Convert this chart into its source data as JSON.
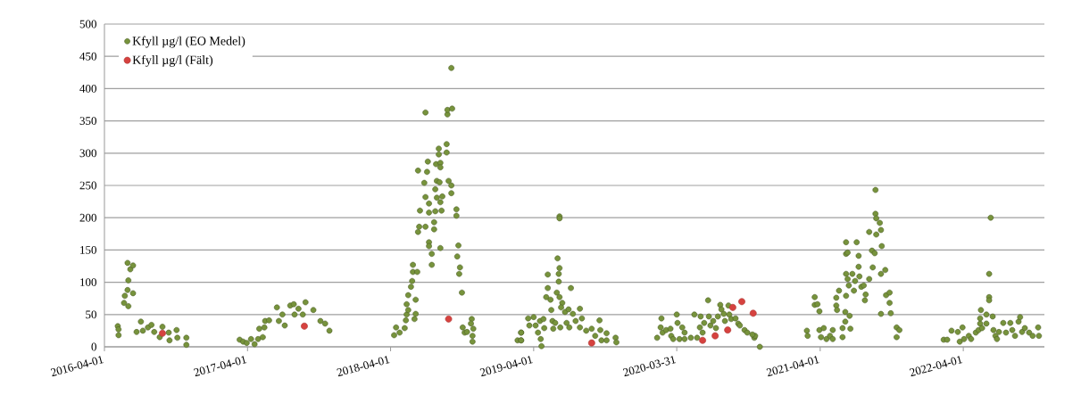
{
  "chart_data": {
    "type": "scatter",
    "xlim": [
      "2016-04-01",
      "2022-10-25"
    ],
    "xticks": [
      "2016-04-01",
      "2017-04-01",
      "2018-04-01",
      "2019-04-01",
      "2020-03-31",
      "2021-04-01",
      "2022-04-01"
    ],
    "ylim": [
      0,
      500
    ],
    "yticks": [
      0,
      50,
      100,
      150,
      200,
      250,
      300,
      350,
      400,
      450,
      500
    ],
    "grid": "y",
    "legend": "top left",
    "marker": "circle",
    "series": [
      {
        "name": "Kfyll µg/l (EO Medel)",
        "color": "#77933c",
        "x": [
          "2016-05-05",
          "2016-05-07",
          "2016-05-07",
          "2016-05-21",
          "2016-06-01",
          "2016-05-23",
          "2016-05-30",
          "2016-06-13",
          "2016-06-01",
          "2016-05-30",
          "2016-06-06",
          "2016-06-13",
          "2016-06-22",
          "2016-07-03",
          "2016-07-08",
          "2016-07-21",
          "2016-07-30",
          "2016-08-06",
          "2016-08-20",
          "2016-08-27",
          "2016-09-12",
          "2016-09-14",
          "2016-10-02",
          "2016-10-04",
          "2016-10-27",
          "2016-10-27",
          "2017-03-12",
          "2017-03-21",
          "2017-03-30",
          "2017-04-10",
          "2017-04-19",
          "2017-04-28",
          "2017-05-01",
          "2017-05-10",
          "2017-05-14",
          "2017-05-16",
          "2017-05-26",
          "2017-06-15",
          "2017-06-20",
          "2017-06-29",
          "2017-07-05",
          "2017-07-19",
          "2017-07-28",
          "2017-07-30",
          "2017-08-09",
          "2017-08-20",
          "2017-08-27",
          "2017-09-16",
          "2017-10-04",
          "2017-10-16",
          "2017-10-27",
          "2018-04-10",
          "2018-04-24",
          "2018-04-15",
          "2018-05-07",
          "2018-05-10",
          "2018-05-12",
          "2018-05-16",
          "2018-05-12",
          "2018-05-16",
          "2018-05-23",
          "2018-05-26",
          "2018-05-28",
          "2018-05-28",
          "2018-06-08",
          "2018-06-04",
          "2018-06-04",
          "2018-06-01",
          "2018-06-10",
          "2018-06-13",
          "2018-06-15",
          "2018-06-10",
          "2018-06-26",
          "2018-06-29",
          "2018-06-29",
          "2018-07-05",
          "2018-07-03",
          "2018-07-08",
          "2018-07-08",
          "2018-07-08",
          "2018-07-08",
          "2018-07-15",
          "2018-07-15",
          "2018-06-29",
          "2018-07-24",
          "2018-07-21",
          "2018-07-21",
          "2018-07-24",
          "2018-07-26",
          "2018-07-28",
          "2018-07-28",
          "2018-08-02",
          "2018-08-02",
          "2018-08-06",
          "2018-08-06",
          "2018-08-04",
          "2018-08-06",
          "2018-08-09",
          "2018-08-06",
          "2018-08-11",
          "2018-08-22",
          "2018-08-22",
          "2018-08-24",
          "2018-08-24",
          "2018-09-05",
          "2018-09-03",
          "2018-08-27",
          "2018-09-03",
          "2018-09-03",
          "2018-09-16",
          "2018-09-16",
          "2018-09-21",
          "2018-09-18",
          "2018-09-25",
          "2018-09-23",
          "2018-09-30",
          "2018-10-02",
          "2018-10-07",
          "2018-10-13",
          "2018-10-25",
          "2018-10-23",
          "2018-10-29",
          "2018-10-27",
          "2018-10-27",
          "2019-02-19",
          "2019-02-28",
          "2019-02-28",
          "2019-02-28",
          "2019-02-28",
          "2019-03-18",
          "2019-03-21",
          "2019-04-01",
          "2019-04-06",
          "2019-04-12",
          "2019-04-19",
          "2019-04-21",
          "2019-04-17",
          "2019-04-26",
          "2019-04-28",
          "2019-05-03",
          "2019-05-07",
          "2019-05-07",
          "2019-05-14",
          "2019-05-16",
          "2019-05-19",
          "2019-05-21",
          "2019-05-26",
          "2019-05-30",
          "2019-06-04",
          "2019-06-04",
          "2019-06-06",
          "2019-06-01",
          "2019-06-06",
          "2019-06-06",
          "2019-06-06",
          "2019-06-13",
          "2019-06-10",
          "2019-06-08",
          "2019-06-20",
          "2019-06-24",
          "2019-06-29",
          "2019-07-01",
          "2019-07-05",
          "2019-07-10",
          "2019-07-17",
          "2019-07-28",
          "2019-07-28",
          "2019-08-02",
          "2019-08-13",
          "2019-08-27",
          "2019-09-05",
          "2019-09-16",
          "2019-09-18",
          "2019-09-21",
          "2019-10-04",
          "2019-10-04",
          "2019-10-27",
          "2019-10-29",
          "2020-02-10",
          "2020-02-21",
          "2020-02-19",
          "2020-02-24",
          "2020-03-04",
          "2020-03-15",
          "2020-03-17",
          "2020-03-22",
          "2020-03-31",
          "2020-04-02",
          "2020-04-07",
          "2020-04-14",
          "2020-04-20",
          "2020-04-20",
          "2020-05-06",
          "2020-05-15",
          "2020-05-22",
          "2020-05-29",
          "2020-05-31",
          "2020-06-05",
          "2020-06-09",
          "2020-06-19",
          "2020-06-21",
          "2020-06-25",
          "2020-07-02",
          "2020-07-09",
          "2020-07-14",
          "2020-07-20",
          "2020-07-23",
          "2020-07-29",
          "2020-08-01",
          "2020-08-10",
          "2020-08-12",
          "2020-08-17",
          "2020-08-28",
          "2020-09-04",
          "2020-09-08",
          "2020-09-20",
          "2020-09-27",
          "2020-10-15",
          "2020-10-17",
          "2020-10-29",
          "2020-10-10",
          "2021-02-26",
          "2021-02-28",
          "2021-03-18",
          "2021-03-18",
          "2021-03-25",
          "2021-03-30",
          "2021-03-30",
          "2021-04-03",
          "2021-04-10",
          "2021-04-17",
          "2021-04-26",
          "2021-05-03",
          "2021-05-03",
          "2021-05-12",
          "2021-05-12",
          "2021-05-14",
          "2021-05-19",
          "2021-05-28",
          "2021-05-28",
          "2021-06-04",
          "2021-06-04",
          "2021-06-06",
          "2021-06-06",
          "2021-06-10",
          "2021-06-06",
          "2021-06-10",
          "2021-06-13",
          "2021-06-06",
          "2021-06-15",
          "2021-06-17",
          "2021-06-22",
          "2021-06-26",
          "2021-06-29",
          "2021-07-03",
          "2021-07-08",
          "2021-07-08",
          "2021-07-10",
          "2021-07-15",
          "2021-07-21",
          "2021-07-24",
          "2021-07-26",
          "2021-08-04",
          "2021-08-04",
          "2021-08-11",
          "2021-08-18",
          "2021-08-13",
          "2021-08-20",
          "2021-08-20",
          "2021-08-22",
          "2021-08-22",
          "2021-08-31",
          "2021-09-03",
          "2021-09-05",
          "2021-09-03",
          "2021-09-03",
          "2021-09-14",
          "2021-09-16",
          "2021-09-25",
          "2021-09-25",
          "2021-09-28",
          "2021-10-13",
          "2021-10-20",
          "2021-10-13",
          "2022-02-10",
          "2022-02-19",
          "2022-03-02",
          "2022-03-18",
          "2022-03-23",
          "2022-03-30",
          "2022-04-03",
          "2022-04-15",
          "2022-04-21",
          "2022-05-03",
          "2022-05-10",
          "2022-05-14",
          "2022-05-14",
          "2022-05-16",
          "2022-05-19",
          "2022-05-30",
          "2022-05-30",
          "2022-06-06",
          "2022-06-06",
          "2022-06-06",
          "2022-06-10",
          "2022-06-15",
          "2022-06-17",
          "2022-06-22",
          "2022-06-26",
          "2022-07-01",
          "2022-07-12",
          "2022-07-19",
          "2022-07-30",
          "2022-08-04",
          "2022-08-11",
          "2022-08-20",
          "2022-08-24",
          "2022-08-29",
          "2022-09-05",
          "2022-09-16",
          "2022-09-25",
          "2022-10-09",
          "2022-10-11"
        ],
        "values": [
          32,
          27,
          18,
          68,
          63,
          79,
          88,
          83,
          103,
          130,
          120,
          126,
          23,
          39,
          25,
          30,
          34,
          23,
          15,
          31,
          22,
          10,
          26,
          14,
          14,
          3,
          11,
          8,
          6,
          12,
          4,
          12,
          28,
          15,
          30,
          40,
          41,
          61,
          40,
          50,
          33,
          64,
          66,
          50,
          59,
          50,
          69,
          57,
          40,
          36,
          25,
          18,
          22,
          30,
          29,
          41,
          50,
          57,
          66,
          80,
          93,
          102,
          127,
          116,
          116,
          73,
          51,
          43,
          178,
          186,
          211,
          273,
          254,
          186,
          232,
          287,
          271,
          222,
          208,
          162,
          156,
          144,
          127,
          363,
          244,
          193,
          182,
          210,
          283,
          231,
          257,
          307,
          298,
          285,
          278,
          255,
          224,
          211,
          153,
          233,
          314,
          301,
          360,
          367,
          369,
          432,
          257,
          250,
          238,
          213,
          203,
          157,
          140,
          123,
          113,
          84,
          30,
          22,
          23,
          43,
          36,
          28,
          17,
          8,
          10,
          10,
          22,
          22,
          10,
          44,
          33,
          46,
          33,
          22,
          12,
          1,
          40,
          43,
          29,
          77,
          91,
          112,
          73,
          57,
          40,
          28,
          37,
          84,
          101,
          113,
          122,
          137,
          202,
          199,
          77,
          68,
          61,
          30,
          54,
          37,
          58,
          30,
          91,
          51,
          40,
          59,
          30,
          44,
          25,
          28,
          17,
          41,
          26,
          10,
          21,
          10,
          14,
          7,
          14,
          44,
          30,
          22,
          26,
          28,
          17,
          12,
          50,
          37,
          12,
          30,
          22,
          12,
          14,
          50,
          14,
          30,
          47,
          22,
          37,
          72,
          47,
          33,
          40,
          29,
          47,
          65,
          58,
          51,
          40,
          64,
          50,
          43,
          44,
          36,
          33,
          26,
          22,
          14,
          17,
          0,
          19,
          25,
          17,
          77,
          65,
          66,
          55,
          26,
          15,
          29,
          12,
          17,
          26,
          12,
          76,
          64,
          57,
          87,
          29,
          15,
          39,
          54,
          162,
          144,
          146,
          113,
          105,
          95,
          79,
          48,
          28,
          113,
          87,
          102,
          162,
          141,
          124,
          109,
          93,
          95,
          72,
          81,
          178,
          105,
          149,
          145,
          123,
          243,
          206,
          199,
          174,
          192,
          181,
          156,
          113,
          51,
          119,
          80,
          84,
          68,
          52,
          30,
          26,
          15,
          11,
          11,
          25,
          23,
          8,
          30,
          12,
          17,
          12,
          22,
          26,
          36,
          44,
          57,
          29,
          50,
          36,
          77,
          72,
          113,
          200,
          47,
          26,
          17,
          12,
          23,
          37,
          22,
          37,
          26,
          17,
          39,
          46,
          23,
          29,
          22,
          17,
          30,
          17
        ]
      },
      {
        "name": "Kfyll µg/l (Fält)",
        "color": "#d6423f",
        "x": [
          "2016-08-27",
          "2017-08-24",
          "2018-08-27",
          "2019-08-27",
          "2020-06-05",
          "2020-07-07",
          "2020-08-08",
          "2020-08-21",
          "2020-09-13",
          "2020-10-12"
        ],
        "values": [
          21,
          32,
          43,
          6,
          10,
          17,
          26,
          61,
          70,
          52
        ]
      }
    ]
  }
}
